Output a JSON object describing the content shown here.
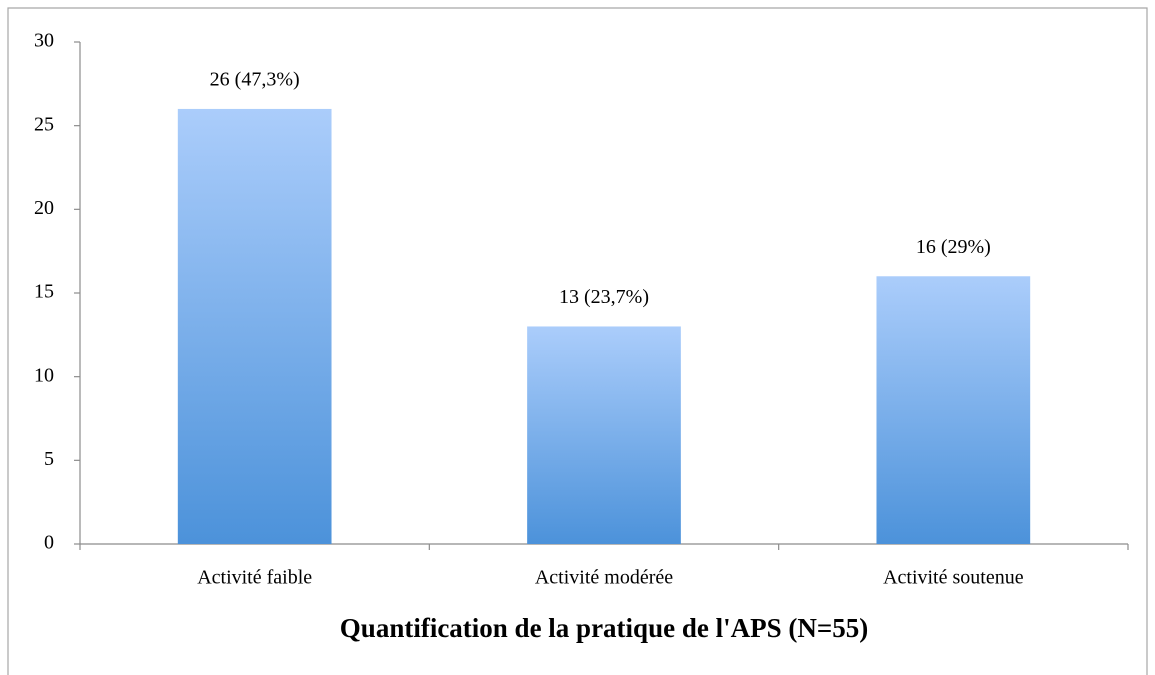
{
  "chart_data": {
    "type": "bar",
    "x_label": "Quantification de la pratique de l'APS (N=55)",
    "categories": [
      "Activité faible",
      "Activité modérée",
      "Activité soutenue"
    ],
    "values": [
      26,
      13,
      16
    ],
    "value_labels": [
      "26 (47,3%)",
      "13 (23,7%)",
      "16 (29%)"
    ],
    "gradient": [
      "#abcdfb",
      "#4c92da"
    ],
    "ylim": [
      0,
      30
    ],
    "yticks": [
      0,
      5,
      10,
      15,
      20,
      25,
      30
    ],
    "grid": false
  }
}
